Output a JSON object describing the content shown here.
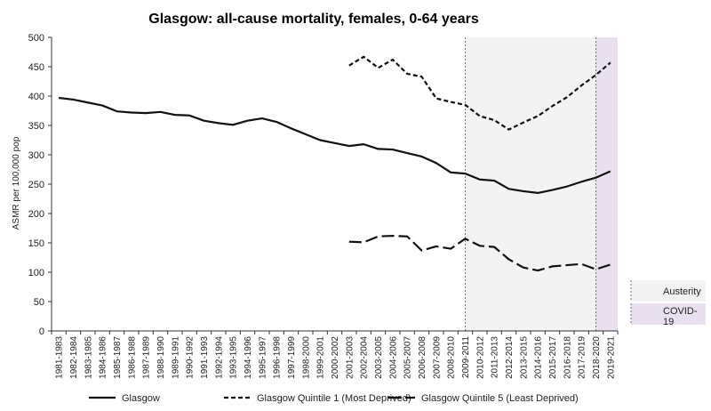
{
  "chart_data": {
    "type": "line",
    "title": "Glasgow: all-cause mortality, females, 0-64 years",
    "ylabel": "ASMR per 100,000 pop",
    "xlabel": "",
    "ylim": [
      0,
      500
    ],
    "yticks": [
      0,
      50,
      100,
      150,
      200,
      250,
      300,
      350,
      400,
      450,
      500
    ],
    "categories": [
      "1981-1983",
      "1982-1984",
      "1983-1985",
      "1984-1986",
      "1985-1987",
      "1986-1988",
      "1987-1989",
      "1988-1990",
      "1989-1991",
      "1990-1992",
      "1991-1993",
      "1992-1994",
      "1993-1995",
      "1994-1996",
      "1995-1997",
      "1996-1998",
      "1997-1999",
      "1998-2000",
      "1999-2001",
      "2000-2002",
      "2001-2003",
      "2002-2004",
      "2003-2005",
      "2004-2006",
      "2005-2007",
      "2006-2008",
      "2007-2009",
      "2008-2010",
      "2009-2011",
      "2010-2012",
      "2011-2013",
      "2012-2014",
      "2013-2015",
      "2014-2016",
      "2015-2017",
      "2016-2018",
      "2017-2019",
      "2018-2020",
      "2019-2021"
    ],
    "series": [
      {
        "name": "Glasgow",
        "style": "solid",
        "values": [
          397,
          394,
          389,
          384,
          374,
          372,
          371,
          373,
          368,
          367,
          358,
          354,
          351,
          358,
          362,
          356,
          345,
          335,
          325,
          320,
          315,
          318,
          310,
          309,
          303,
          297,
          286,
          270,
          268,
          258,
          256,
          242,
          238,
          235,
          240,
          246,
          254,
          261,
          272
        ]
      },
      {
        "name": "Glasgow Quintile 1 (Most Deprived)",
        "style": "dashed",
        "values": [
          null,
          null,
          null,
          null,
          null,
          null,
          null,
          null,
          null,
          null,
          null,
          null,
          null,
          null,
          null,
          null,
          null,
          null,
          null,
          null,
          452,
          467,
          448,
          462,
          438,
          433,
          396,
          390,
          385,
          366,
          359,
          343,
          355,
          366,
          383,
          398,
          418,
          436,
          457
        ]
      },
      {
        "name": "Glasgow Quintile 5 (Least Deprived)",
        "style": "longdash",
        "values": [
          null,
          null,
          null,
          null,
          null,
          null,
          null,
          null,
          null,
          null,
          null,
          null,
          null,
          null,
          null,
          null,
          null,
          null,
          null,
          null,
          152,
          151,
          161,
          162,
          161,
          137,
          144,
          140,
          157,
          145,
          143,
          122,
          108,
          103,
          110,
          112,
          114,
          105,
          113
        ]
      }
    ],
    "periods": [
      {
        "name": "Austerity",
        "from": "2009-2011",
        "to": "2018-2020",
        "color": "#f3f3f3"
      },
      {
        "name": "COVID-19",
        "from": "2018-2020",
        "to": "2019-2021",
        "color": "#e8e0ee"
      }
    ],
    "legend_placement": "bottom",
    "grid": false
  }
}
